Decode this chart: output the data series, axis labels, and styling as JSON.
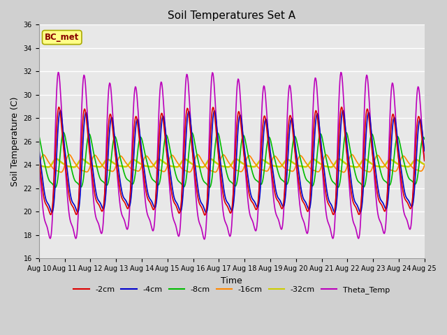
{
  "title": "Soil Temperatures Set A",
  "xlabel": "Time",
  "ylabel": "Soil Temperature (C)",
  "ylim": [
    16,
    36
  ],
  "x_tick_labels": [
    "Aug 10",
    "Aug 11",
    "Aug 12",
    "Aug 13",
    "Aug 14",
    "Aug 15",
    "Aug 16",
    "Aug 17",
    "Aug 18",
    "Aug 19",
    "Aug 20",
    "Aug 21",
    "Aug 22",
    "Aug 23",
    "Aug 24",
    "Aug 25"
  ],
  "series": {
    "-2cm": {
      "color": "#dd0000",
      "lw": 1.2,
      "mean": 23.5,
      "amp": 5.5,
      "phase": 0.0,
      "depth_delay": 0.0
    },
    "-4cm": {
      "color": "#0000cc",
      "lw": 1.2,
      "mean": 23.5,
      "amp": 5.2,
      "phase": 0.05,
      "depth_delay": 0.05
    },
    "-8cm": {
      "color": "#00bb00",
      "lw": 1.2,
      "mean": 24.0,
      "amp": 2.8,
      "phase": 0.18,
      "depth_delay": 0.18
    },
    "-16cm": {
      "color": "#ff8800",
      "lw": 1.2,
      "mean": 24.0,
      "amp": 0.9,
      "phase": 0.4,
      "depth_delay": 0.4
    },
    "-32cm": {
      "color": "#cccc00",
      "lw": 1.8,
      "mean": 24.1,
      "amp": 0.42,
      "phase": 0.9,
      "depth_delay": 0.9
    },
    "Theta_Temp": {
      "color": "#bb00bb",
      "lw": 1.2,
      "mean": 23.5,
      "amp": 8.5,
      "phase": -0.02,
      "depth_delay": -0.02
    }
  },
  "fig_bg": "#d0d0d0",
  "ax_bg": "#e8e8e8",
  "label_box_text": "BC_met",
  "label_box_fc": "#ffff88",
  "label_box_ec": "#aaaa00",
  "label_box_tc": "#880000",
  "title_fontsize": 11,
  "tick_fontsize": 7,
  "label_fontsize": 9
}
